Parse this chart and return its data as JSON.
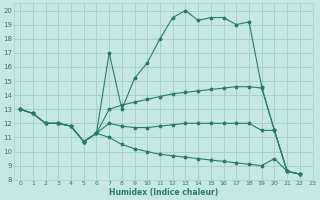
{
  "xlabel": "Humidex (Indice chaleur)",
  "bg_color": "#c5e8e5",
  "grid_color": "#a8d0cc",
  "line_color": "#2a7a6a",
  "xlim": [
    -0.5,
    23
  ],
  "ylim": [
    8,
    20.5
  ],
  "xticks": [
    0,
    1,
    2,
    3,
    4,
    5,
    6,
    7,
    8,
    9,
    10,
    11,
    12,
    13,
    14,
    15,
    16,
    17,
    18,
    19,
    20,
    21,
    22,
    23
  ],
  "yticks": [
    8,
    9,
    10,
    11,
    12,
    13,
    14,
    15,
    16,
    17,
    18,
    19,
    20
  ],
  "series": [
    {
      "x": [
        0,
        1,
        2,
        3,
        4,
        5,
        6,
        7,
        8,
        9,
        10,
        11,
        12,
        13,
        14,
        15,
        16,
        17,
        18,
        19,
        20,
        21,
        22
      ],
      "y": [
        13,
        12.7,
        12,
        12,
        11.8,
        10.7,
        11.3,
        17,
        13,
        15.2,
        16.3,
        18,
        19.5,
        20,
        19.3,
        19.5,
        19.5,
        19,
        19.2,
        14.6,
        11.5,
        8.6,
        8.4
      ]
    },
    {
      "x": [
        0,
        1,
        2,
        3,
        4,
        5,
        6,
        7,
        8,
        9,
        10,
        11,
        12,
        13,
        14,
        15,
        16,
        17,
        18,
        19,
        20,
        21,
        22
      ],
      "y": [
        13,
        12.7,
        12,
        12,
        11.8,
        10.7,
        11.3,
        13,
        13.3,
        13.5,
        13.7,
        13.9,
        14.1,
        14.2,
        14.3,
        14.4,
        14.5,
        14.6,
        14.6,
        14.5,
        11.5,
        8.6,
        8.4
      ]
    },
    {
      "x": [
        0,
        1,
        2,
        3,
        4,
        5,
        6,
        7,
        8,
        9,
        10,
        11,
        12,
        13,
        14,
        15,
        16,
        17,
        18,
        19,
        20,
        21,
        22
      ],
      "y": [
        13,
        12.7,
        12,
        12,
        11.8,
        10.7,
        11.3,
        12,
        11.8,
        11.7,
        11.7,
        11.8,
        11.9,
        12.0,
        12.0,
        12.0,
        12.0,
        12.0,
        12.0,
        11.5,
        11.5,
        8.6,
        8.4
      ]
    },
    {
      "x": [
        0,
        1,
        2,
        3,
        4,
        5,
        6,
        7,
        8,
        9,
        10,
        11,
        12,
        13,
        14,
        15,
        16,
        17,
        18,
        19,
        20,
        21,
        22
      ],
      "y": [
        13,
        12.7,
        12,
        12,
        11.8,
        10.7,
        11.3,
        11.0,
        10.5,
        10.2,
        10.0,
        9.8,
        9.7,
        9.6,
        9.5,
        9.4,
        9.3,
        9.2,
        9.1,
        9.0,
        9.5,
        8.6,
        8.4
      ]
    }
  ]
}
